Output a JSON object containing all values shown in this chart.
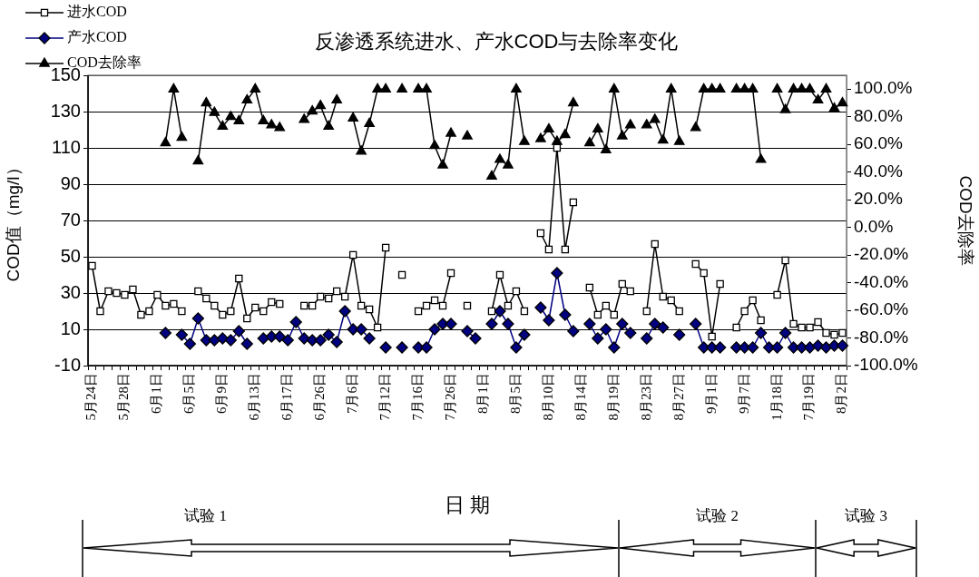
{
  "chart_data": {
    "type": "line",
    "title": "反渗透系统进水、产水COD与去除率变化",
    "xlabel": "日 期",
    "ylabel": "COD值（mg/l）",
    "y2label": "COD去除率",
    "categories": [
      "5月24日",
      null,
      null,
      null,
      "5月28日",
      null,
      null,
      null,
      "6月1日",
      null,
      null,
      null,
      "6月5日",
      null,
      null,
      null,
      "6月9日",
      null,
      null,
      null,
      "6月13日",
      null,
      null,
      null,
      "6月17日",
      null,
      null,
      null,
      "6月26日",
      null,
      null,
      null,
      "7月6日",
      null,
      null,
      null,
      "7月12日",
      null,
      null,
      null,
      "7月16日",
      null,
      null,
      null,
      "7月26日",
      null,
      null,
      null,
      "8月1日",
      null,
      null,
      null,
      "8月5日",
      null,
      null,
      null,
      "8月10日",
      null,
      null,
      null,
      "8月14日",
      null,
      null,
      null,
      "8月19日",
      null,
      null,
      null,
      "8月23日",
      null,
      null,
      null,
      "8月27日",
      null,
      null,
      null,
      "9月1日",
      null,
      null,
      null,
      "9月7日",
      null,
      null,
      null,
      "1月18日",
      null,
      null,
      null,
      "7月19日",
      null,
      null,
      null,
      "8月2日"
    ],
    "series": [
      {
        "name": "进水COD",
        "color": "#000000",
        "marker": "square",
        "values": [
          45,
          20,
          31,
          30,
          29,
          32,
          18,
          20,
          29,
          23,
          24,
          20,
          null,
          31,
          27,
          23,
          18,
          20,
          38,
          16,
          22,
          20,
          25,
          24,
          null,
          null,
          23,
          23,
          28,
          27,
          31,
          28,
          51,
          23,
          21,
          11,
          55,
          null,
          40,
          null,
          20,
          23,
          26,
          23,
          41,
          null,
          23,
          null,
          null,
          20,
          40,
          23,
          31,
          20,
          null,
          63,
          54,
          110,
          54,
          80,
          null,
          33,
          18,
          23,
          18,
          35,
          31,
          null,
          20,
          57,
          28,
          26,
          20,
          null,
          46,
          41,
          6,
          35,
          null,
          11,
          20,
          26,
          15,
          null,
          29,
          48,
          13,
          11,
          11,
          14,
          8,
          7,
          8
        ]
      },
      {
        "name": "产水COD",
        "color": "#000080",
        "marker": "diamond",
        "values": [
          null,
          null,
          null,
          null,
          null,
          null,
          null,
          null,
          null,
          8,
          null,
          7,
          2,
          16,
          4,
          4,
          5,
          4,
          9,
          2,
          null,
          5,
          6,
          6,
          4,
          14,
          5,
          4,
          4,
          7,
          3,
          20,
          10,
          10,
          5,
          null,
          0,
          null,
          0,
          null,
          0,
          0,
          10,
          13,
          13,
          null,
          9,
          5,
          null,
          13,
          20,
          13,
          0,
          7,
          null,
          22,
          15,
          41,
          18,
          9,
          null,
          13,
          5,
          10,
          0,
          13,
          8,
          null,
          5,
          13,
          11,
          null,
          7,
          null,
          13,
          0,
          0,
          0,
          null,
          0,
          0,
          0,
          8,
          0,
          0,
          8,
          0,
          0,
          0,
          1,
          0,
          1,
          1
        ]
      },
      {
        "name": "COD去除率",
        "color": "#000000",
        "marker": "triangle",
        "axis": "y2",
        "values": [
          null,
          null,
          null,
          null,
          null,
          null,
          null,
          null,
          null,
          61,
          100,
          65,
          null,
          48,
          90,
          83,
          73,
          80,
          77,
          92,
          100,
          77,
          74,
          72,
          null,
          null,
          78,
          84,
          88,
          73,
          92,
          null,
          79,
          55,
          75,
          100,
          100,
          null,
          100,
          null,
          100,
          100,
          59,
          45,
          68,
          null,
          66,
          null,
          null,
          37,
          49,
          45,
          100,
          62,
          null,
          64,
          71,
          62,
          67,
          90,
          null,
          61,
          71,
          56,
          100,
          66,
          74,
          null,
          74,
          78,
          63,
          100,
          62,
          null,
          72,
          100,
          100,
          100,
          null,
          100,
          100,
          100,
          49,
          null,
          100,
          85,
          100,
          100,
          100,
          92,
          100,
          86,
          90
        ]
      }
    ],
    "ylim": [
      -10,
      150
    ],
    "yticks": [
      -10,
      10,
      30,
      50,
      70,
      90,
      110,
      130,
      150
    ],
    "y2lim": [
      -100,
      110
    ],
    "y2ticks": [
      {
        "value": -100,
        "label": "-100.0%"
      },
      {
        "value": -80,
        "label": "-80.0%"
      },
      {
        "value": -60,
        "label": "-60.0%"
      },
      {
        "value": -40,
        "label": "-40.0%"
      },
      {
        "value": -20,
        "label": "-20.0%"
      },
      {
        "value": 0,
        "label": "0.0%"
      },
      {
        "value": 20,
        "label": "20.0%"
      },
      {
        "value": 40,
        "label": "40.0%"
      },
      {
        "value": 60,
        "label": "60.0%"
      },
      {
        "value": 80,
        "label": "80.0%"
      },
      {
        "value": 100,
        "label": "100.0%"
      }
    ],
    "grid": "y",
    "legend": "top left",
    "annotations": [
      "试验 1",
      "试验 2",
      "试验 3"
    ]
  }
}
